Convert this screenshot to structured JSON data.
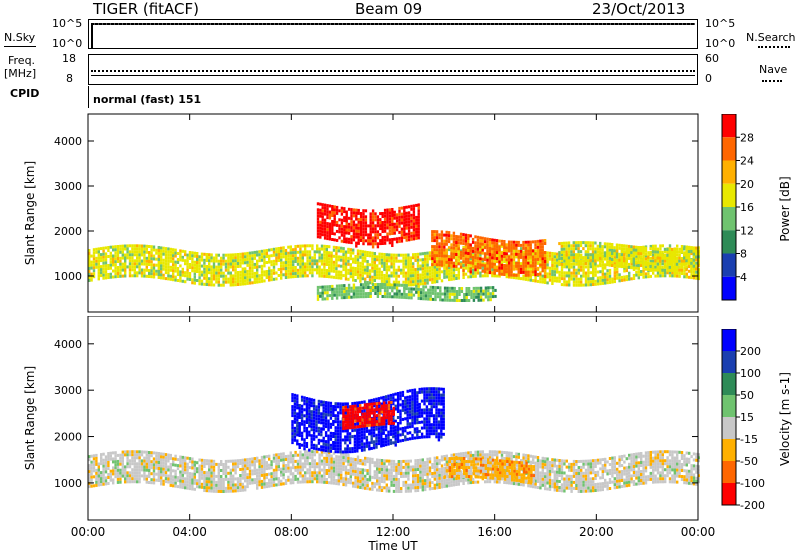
{
  "header": {
    "title": "TIGER (fitACF)",
    "beam": "Beam 09",
    "date": "23/Oct/2013"
  },
  "strips": {
    "nsky_label": "N.Sky",
    "nsearch_label": "N.Search",
    "nsky_ticks": [
      "10^5",
      "10^0"
    ],
    "nsearch_ticks": [
      "10^5",
      "10^0"
    ],
    "freq_label": "Freq.",
    "freq_unit": "[MHz]",
    "freq_ticks": [
      "18",
      "8"
    ],
    "nave_label": "Nave",
    "nave_ticks": [
      "60",
      "0"
    ],
    "cpid_label": "CPID",
    "cpid_value": "normal (fast) 151"
  },
  "chart_data": [
    {
      "type": "heatmap",
      "title": "",
      "ylabel": "Slant Range [km]",
      "xlabel": "Time UT",
      "ylim": [
        200,
        4600
      ],
      "yticks": [
        "4000",
        "3000",
        "2000",
        "1000"
      ],
      "xticks": [
        "00:00",
        "04:00",
        "08:00",
        "12:00",
        "16:00",
        "20:00",
        "00:00"
      ],
      "colorbar": {
        "label": "Power [dB]",
        "ticks": [
          "28",
          "24",
          "20",
          "16",
          "12",
          "8",
          "4"
        ],
        "colors": [
          "#ff0000",
          "#ff6600",
          "#ffb000",
          "#e8e800",
          "#6fc36f",
          "#2e8b57",
          "#1a3fb0",
          "#0000ff"
        ]
      },
      "features": [
        {
          "time_h": [
            0,
            24
          ],
          "range_km": [
            900,
            1600
          ],
          "level_db": 16,
          "note": "main band"
        },
        {
          "time_h": [
            9,
            13
          ],
          "range_km": [
            1800,
            2600
          ],
          "level_db": 28,
          "note": "strong patch"
        },
        {
          "time_h": [
            13.5,
            18
          ],
          "range_km": [
            1100,
            1900
          ],
          "level_db": 22
        },
        {
          "time_h": [
            18.5,
            24
          ],
          "range_km": [
            1200,
            1700
          ],
          "level_db": 18
        },
        {
          "time_h": [
            9,
            16
          ],
          "range_km": [
            500,
            800
          ],
          "level_db": 12
        }
      ]
    },
    {
      "type": "heatmap",
      "title": "",
      "ylabel": "Slant Range [km]",
      "xlabel": "Time UT",
      "ylim": [
        200,
        4600
      ],
      "yticks": [
        "4000",
        "3000",
        "2000",
        "1000"
      ],
      "xticks": [
        "00:00",
        "04:00",
        "08:00",
        "12:00",
        "16:00",
        "20:00",
        "00:00"
      ],
      "colorbar": {
        "label": "Velocity [m s-1]",
        "ticks": [
          "200",
          "100",
          "50",
          "15",
          "-15",
          "-50",
          "-100",
          "-200"
        ],
        "colors": [
          "#0000ff",
          "#1a3fb0",
          "#2e8b57",
          "#6fc36f",
          "#c8c8c8",
          "#ffb000",
          "#ff6600",
          "#ff0000"
        ]
      },
      "features": [
        {
          "time_h": [
            0,
            24
          ],
          "range_km": [
            900,
            1600
          ],
          "velocity_ms": 0,
          "note": "ground scatter"
        },
        {
          "time_h": [
            14,
            17.5
          ],
          "range_km": [
            1100,
            1500
          ],
          "velocity_ms": -40
        },
        {
          "time_h": [
            8,
            14
          ],
          "range_km": [
            1800,
            2900
          ],
          "velocity_ms": 150
        },
        {
          "time_h": [
            10,
            12
          ],
          "range_km": [
            2200,
            2700
          ],
          "velocity_ms": -180
        }
      ]
    }
  ]
}
